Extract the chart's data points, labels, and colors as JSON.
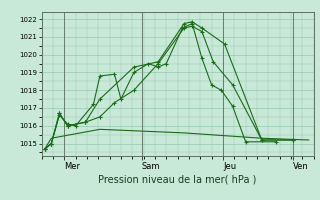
{
  "background_color": "#c8e8d8",
  "grid_color": "#98c8b0",
  "line_color": "#1a6b1a",
  "xlabel": "Pression niveau de la mer( hPa )",
  "ylim": [
    1014.3,
    1022.4
  ],
  "yticks": [
    1015,
    1016,
    1017,
    1018,
    1019,
    1020,
    1021,
    1022
  ],
  "day_labels": [
    "Mer",
    "Sam",
    "Jeu",
    "Ven"
  ],
  "day_positions": [
    14,
    62,
    112,
    155
  ],
  "series1_x": [
    2,
    6,
    11,
    16,
    21,
    32,
    36,
    45,
    49,
    57,
    66,
    72,
    77,
    87,
    93,
    99,
    105,
    111,
    118,
    126,
    145
  ],
  "series1_y": [
    1014.7,
    1015.0,
    1016.6,
    1016.1,
    1016.0,
    1017.2,
    1018.8,
    1018.9,
    1017.5,
    1019.0,
    1019.5,
    1019.3,
    1019.5,
    1021.5,
    1021.75,
    1019.8,
    1018.3,
    1018.0,
    1017.1,
    1015.1,
    1015.1
  ],
  "series2_x": [
    2,
    6,
    11,
    16,
    27,
    36,
    45,
    57,
    72,
    88,
    93,
    99,
    106,
    118,
    136,
    155
  ],
  "series2_y": [
    1014.7,
    1015.0,
    1016.7,
    1016.0,
    1016.2,
    1016.5,
    1017.3,
    1018.0,
    1019.5,
    1021.5,
    1021.6,
    1021.3,
    1019.6,
    1018.3,
    1015.2,
    1015.2
  ],
  "series3_x": [
    2,
    6,
    36,
    88,
    136,
    165
  ],
  "series3_y": [
    1014.7,
    1015.3,
    1015.8,
    1015.6,
    1015.3,
    1015.2
  ],
  "series4_x": [
    2,
    6,
    11,
    16,
    27,
    36,
    57,
    72,
    88,
    93,
    99,
    113,
    136,
    155
  ],
  "series4_y": [
    1014.7,
    1015.0,
    1016.7,
    1016.0,
    1016.2,
    1017.5,
    1019.3,
    1019.6,
    1021.75,
    1021.85,
    1021.5,
    1020.6,
    1015.2,
    1015.2
  ],
  "xlim": [
    0,
    168
  ]
}
